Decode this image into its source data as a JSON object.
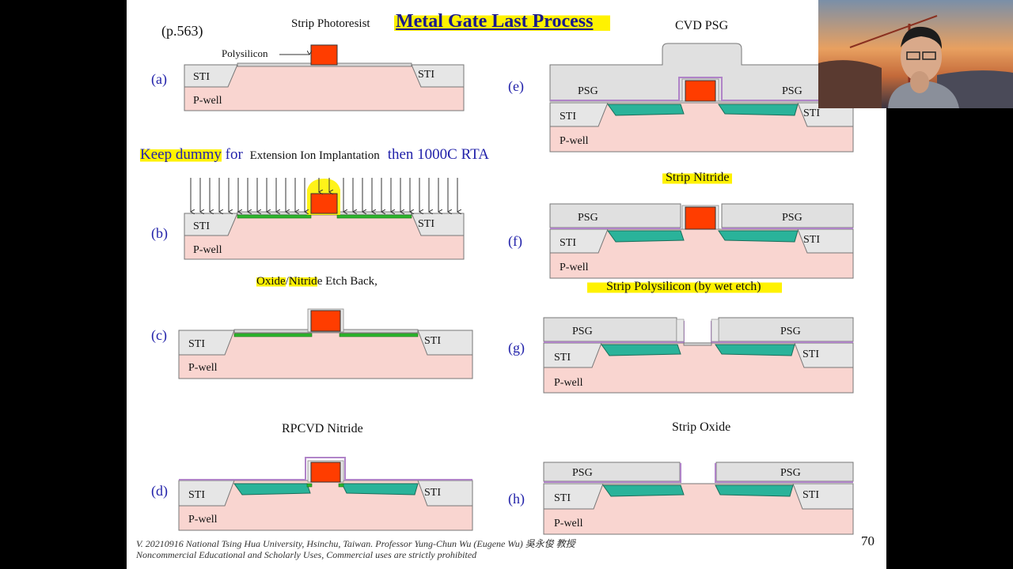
{
  "page_ref": "(p.563)",
  "title": "Metal Gate Last Process",
  "page_number": "70",
  "footer": {
    "line1": "V. 20210916 National Tsing Hua University, Hsinchu, Taiwan. Professor Yung-Chun Wu (Eugene Wu) 吳永俊 教授",
    "line2": "Noncommercial Educational and Scholarly Uses, Commercial uses are strictly prohibited"
  },
  "captions": {
    "strip_photoresist": "Strip Photoresist",
    "polysilicon": "Polysilicon",
    "keep_dummy_a": "Keep dummy",
    "keep_dummy_b": " for ",
    "extension": "Extension Ion Implantation",
    "rta": "then 1000C RTA",
    "oxide": "Oxide",
    "slash": "/",
    "nitrid": "Nitrid",
    "etch_back": "e Etch Back,",
    "rpcvd": "RPCVD Nitride",
    "cvd_psg": "CVD PSG",
    "strip_nitride": "Strip Nitride",
    "strip_poly": "Strip Polysilicon (by wet etch)",
    "strip_oxide": "Strip Oxide"
  },
  "steps": {
    "a": "(a)",
    "b": "(b)",
    "c": "(c)",
    "d": "(d)",
    "e": "(e)",
    "f": "(f)",
    "g": "(g)",
    "h": "(h)"
  },
  "labels": {
    "sti": "STI",
    "pwell": "P-well",
    "psg": "PSG"
  },
  "colors": {
    "pwell": "#f9d5d0",
    "sti": "#e6e6e6",
    "gate": "#ff3d00",
    "extension": "#2cb52c",
    "spacer": "#2ab39a",
    "highlight": "#fff200",
    "label_blue": "#2222aa",
    "nitride": "#b084c8"
  }
}
